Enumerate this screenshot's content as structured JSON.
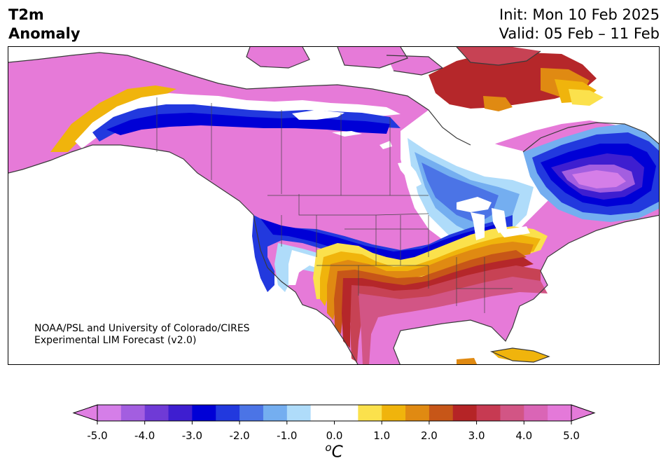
{
  "title": {
    "line1": "T2m",
    "line2": "Anomaly"
  },
  "forecast": {
    "init": "Init: Mon 10 Feb 2025",
    "valid": "Valid: 05 Feb – 11 Feb"
  },
  "credit": {
    "line1": "NOAA/PSL and University of Colorado/CIRES",
    "line2": "Experimental LIM Forecast (v2.0)"
  },
  "colorbar": {
    "units_sup": "o",
    "units_base": "C",
    "tick_labels": [
      "-5.0",
      "-4.0",
      "-3.0",
      "-2.0",
      "-1.0",
      "0.0",
      "1.0",
      "2.0",
      "3.0",
      "4.0",
      "5.0"
    ],
    "colors": [
      "#d57ee8",
      "#a35ee0",
      "#6f3ad6",
      "#3e1ed0",
      "#0000d6",
      "#2239de",
      "#4b74e6",
      "#74aef0",
      "#afdcfa",
      "#ffffff",
      "#ffffff",
      "#fbe14c",
      "#f0b40c",
      "#e08a12",
      "#c75618",
      "#b52426",
      "#c73a52",
      "#d25585",
      "#da65b6",
      "#e479d9"
    ],
    "extend_low_color": "#e07fe3",
    "extend_high_color": "#e47ad9"
  },
  "map_colors": {
    "cold_extreme": "#e57ad9",
    "ocean": "#ffffff",
    "coast": "#3a3a3a"
  }
}
